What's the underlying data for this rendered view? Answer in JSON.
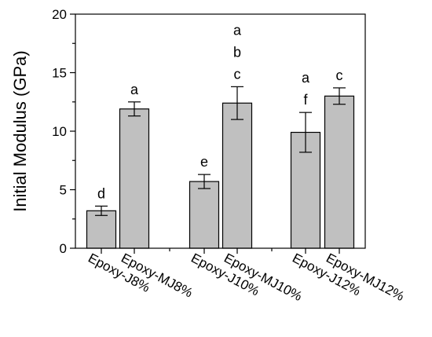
{
  "chart_data": {
    "type": "bar",
    "title": "",
    "xlabel": "",
    "ylabel": "Initial Modulus (GPa)",
    "ylim": [
      0,
      20
    ],
    "yticks": [
      0,
      5,
      10,
      15,
      20
    ],
    "grid": false,
    "bar_color": "#c0c0c0",
    "categories": [
      "Epoxy-J8%",
      "Epoxy-MJ8%",
      "Epoxy-J10%",
      "Epoxy-MJ10%",
      "Epoxy-J12%",
      "Epoxy-MJ12%"
    ],
    "values": [
      3.2,
      11.9,
      5.7,
      12.4,
      9.9,
      13.0
    ],
    "errors": [
      0.4,
      0.6,
      0.6,
      1.4,
      1.7,
      0.7
    ],
    "significance": [
      [
        "d"
      ],
      [
        "a"
      ],
      [
        "e"
      ],
      [
        "a",
        "b",
        "c"
      ],
      [
        "a",
        "f"
      ],
      [
        "c"
      ]
    ]
  }
}
